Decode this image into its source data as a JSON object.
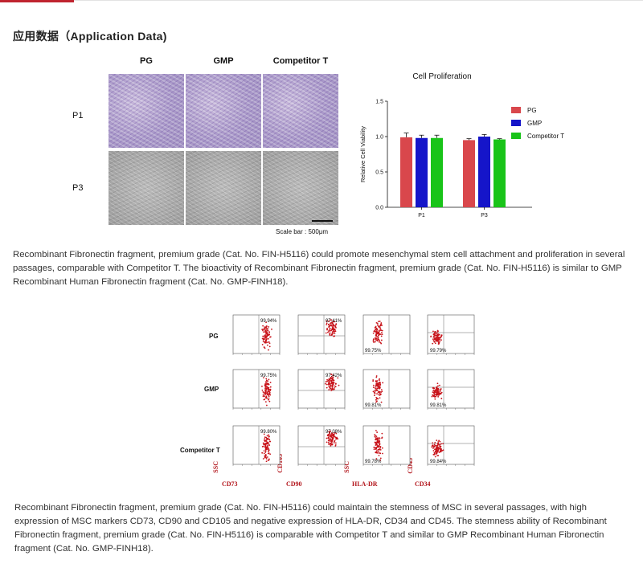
{
  "section_title": "应用数据（Application Data)",
  "figure1": {
    "columns": [
      "PG",
      "GMP",
      "Competitor T"
    ],
    "rows": [
      "P1",
      "P3"
    ],
    "scale_bar": "Scale bar : 500μm",
    "chart_data": {
      "type": "bar",
      "title": "Cell Proliferation",
      "ylabel": "Relative Cell Viability",
      "xlabel": "",
      "categories": [
        "P1",
        "P3"
      ],
      "series": [
        {
          "name": "PG",
          "color": "#d9474c",
          "values": [
            0.99,
            0.95
          ],
          "errors": [
            0.06,
            0.02
          ]
        },
        {
          "name": "GMP",
          "color": "#1515c9",
          "values": [
            0.98,
            1.0
          ],
          "errors": [
            0.04,
            0.03
          ]
        },
        {
          "name": "Competitor T",
          "color": "#19c419",
          "values": [
            0.98,
            0.96
          ],
          "errors": [
            0.04,
            0.01
          ]
        }
      ],
      "ylim": [
        0,
        1.5
      ],
      "yticks": [
        "0.0",
        "0.5",
        "1.0",
        "1.5"
      ],
      "legend": "right"
    }
  },
  "paragraph1": "Recombinant Fibronectin fragment, premium grade (Cat. No. FIN-H5116) could promote mesenchymal stem cell attachment and proliferation in several passages, comparable with Competitor T. The bioactivity of Recombinant Fibronectin fragment, premium grade (Cat. No. FIN-H5116) is similar to GMP Recombinant Human Fibronectin fragment (Cat. No. GMP-FINH18).",
  "figure2": {
    "rows": [
      "PG",
      "GMP",
      "Competitor T"
    ],
    "markers": [
      "CD73",
      "CD90",
      "HLA-DR",
      "CD34"
    ],
    "vertical_markers": [
      "SSC",
      "CD105",
      "SSC",
      "CD45"
    ],
    "percentages": [
      [
        "99.94%",
        "97.41%",
        "99.75%",
        "99.79%"
      ],
      [
        "99.75%",
        "97.42%",
        "99.81%",
        "99.81%"
      ],
      [
        "99.80%",
        "97.08%",
        "99.78%",
        "99.84%"
      ]
    ]
  },
  "paragraph2": "Recombinant Fibronectin fragment, premium grade (Cat. No. FIN-H5116) could maintain the stemness of MSC in several passages, with high expression of MSC markers CD73, CD90 and CD105 and negative expression of HLA-DR, CD34 and CD45. The stemness ability of Recombinant Fibronectin fragment, premium grade (Cat. No. FIN-H5116) is comparable with Competitor T and similar to GMP Recombinant Human Fibronectin fragment (Cat. No. GMP-FINH18).",
  "colors": {
    "accent": "#c0242f",
    "marker_red": "#b3161c",
    "dot_red": "#c8141b"
  }
}
